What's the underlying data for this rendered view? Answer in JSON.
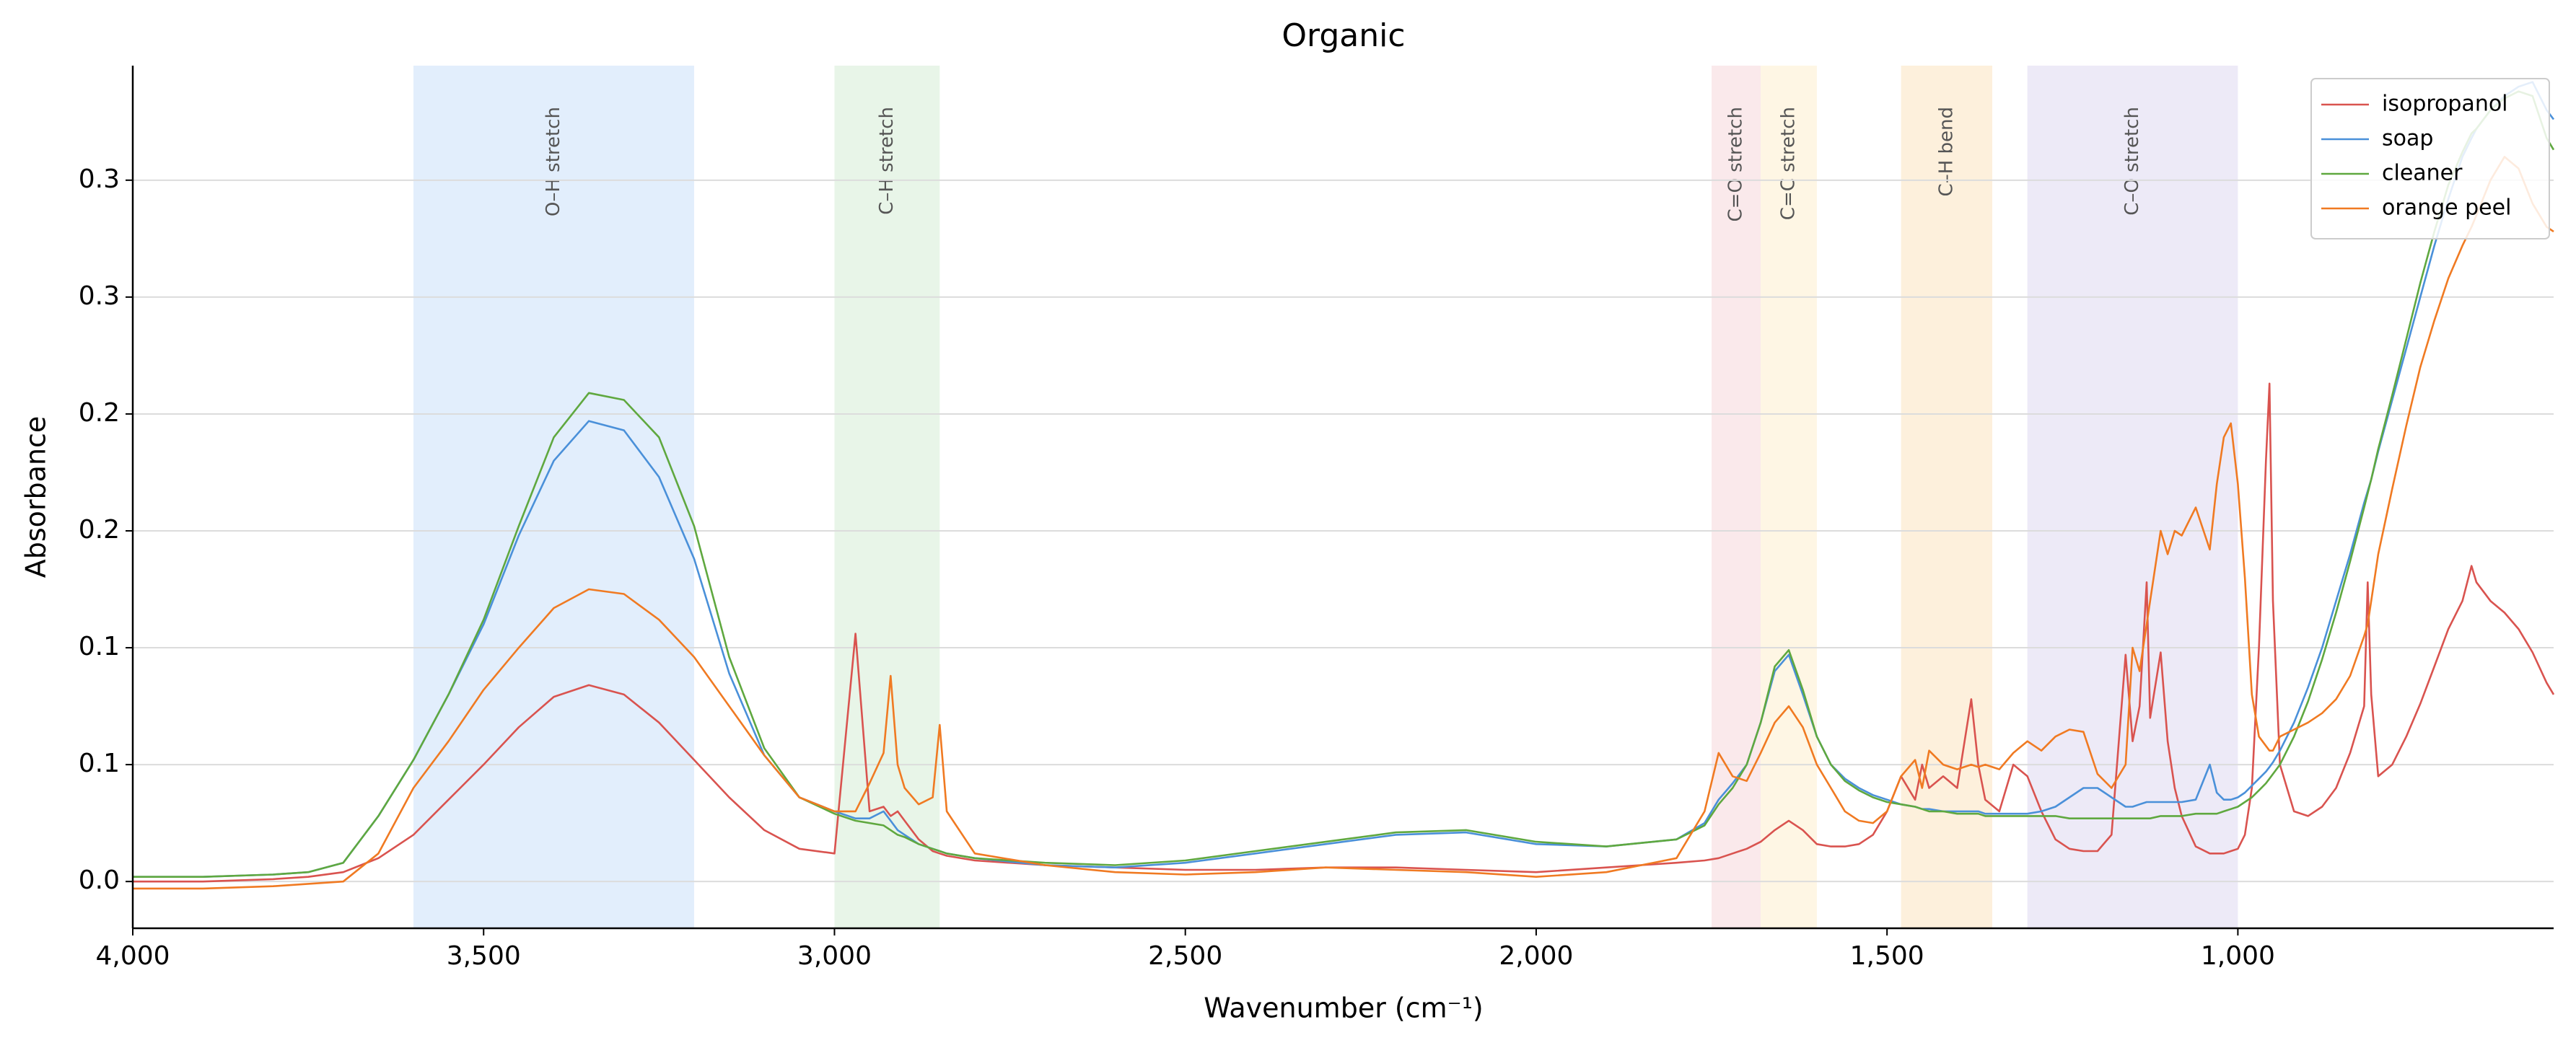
{
  "chart_data": {
    "type": "line",
    "title": "Organic",
    "xlabel": "Wavenumber (cm⁻¹)",
    "ylabel": "Absorbance",
    "xlim": [
      4000,
      550
    ],
    "ylim": [
      -0.02,
      0.349
    ],
    "xticks": [
      {
        "value": 4000,
        "label": "4,000"
      },
      {
        "value": 3500,
        "label": "3,500"
      },
      {
        "value": 3000,
        "label": "3,000"
      },
      {
        "value": 2500,
        "label": "2,500"
      },
      {
        "value": 2000,
        "label": "2,000"
      },
      {
        "value": 1500,
        "label": "1,500"
      },
      {
        "value": 1000,
        "label": "1,000"
      }
    ],
    "yticks": [
      {
        "value": 0,
        "label": "0.0"
      },
      {
        "value": 0.05,
        "label": "0.1"
      },
      {
        "value": 0.1,
        "label": "0.1"
      },
      {
        "value": 0.15,
        "label": "0.2"
      },
      {
        "value": 0.2,
        "label": "0.2"
      },
      {
        "value": 0.25,
        "label": "0.3"
      },
      {
        "value": 0.3,
        "label": "0.3"
      }
    ],
    "grid": true,
    "legend": "upper right",
    "bands": [
      {
        "label": "O–H stretch",
        "from": 3600,
        "to": 3200,
        "color": "#cfe2fa"
      },
      {
        "label": "C–H stretch",
        "from": 3000,
        "to": 2850,
        "color": "#d8eed8"
      },
      {
        "label": "C=O stretch",
        "from": 1750,
        "to": 1680,
        "color": "#f7dadd"
      },
      {
        "label": "C=C stretch",
        "from": 1680,
        "to": 1600,
        "color": "#fdf0d2"
      },
      {
        "label": "C–H bend",
        "from": 1480,
        "to": 1350,
        "color": "#fbe6c4"
      },
      {
        "label": "C–O stretch",
        "from": 1300,
        "to": 1000,
        "color": "#e1dcf2"
      }
    ],
    "x": [
      4000,
      3900,
      3800,
      3750,
      3700,
      3650,
      3600,
      3550,
      3500,
      3450,
      3400,
      3350,
      3300,
      3250,
      3200,
      3150,
      3100,
      3050,
      3000,
      2970,
      2950,
      2930,
      2920,
      2910,
      2900,
      2880,
      2860,
      2850,
      2840,
      2800,
      2700,
      2600,
      2500,
      2400,
      2300,
      2200,
      2100,
      2000,
      1900,
      1800,
      1760,
      1740,
      1720,
      1700,
      1680,
      1660,
      1640,
      1620,
      1600,
      1580,
      1560,
      1540,
      1520,
      1500,
      1480,
      1460,
      1450,
      1440,
      1420,
      1400,
      1380,
      1370,
      1360,
      1340,
      1320,
      1300,
      1280,
      1260,
      1240,
      1220,
      1200,
      1180,
      1160,
      1150,
      1140,
      1130,
      1125,
      1110,
      1100,
      1090,
      1080,
      1060,
      1040,
      1030,
      1020,
      1010,
      1000,
      990,
      980,
      970,
      960,
      955,
      950,
      940,
      920,
      900,
      880,
      860,
      840,
      820,
      815,
      810,
      800,
      780,
      760,
      740,
      720,
      700,
      680,
      667,
      660,
      640,
      620,
      600,
      580,
      560,
      550
    ],
    "series": [
      {
        "name": "isopropanol",
        "color": "#d9534f",
        "values": [
          0.0,
          0.0,
          0.001,
          0.002,
          0.004,
          0.01,
          0.02,
          0.035,
          0.05,
          0.066,
          0.079,
          0.084,
          0.08,
          0.068,
          0.052,
          0.036,
          0.022,
          0.014,
          0.012,
          0.106,
          0.03,
          0.032,
          0.028,
          0.03,
          0.026,
          0.018,
          0.013,
          0.012,
          0.011,
          0.009,
          0.007,
          0.006,
          0.005,
          0.005,
          0.006,
          0.006,
          0.005,
          0.004,
          0.006,
          0.008,
          0.009,
          0.01,
          0.012,
          0.014,
          0.017,
          0.022,
          0.026,
          0.022,
          0.016,
          0.015,
          0.015,
          0.016,
          0.02,
          0.03,
          0.045,
          0.035,
          0.05,
          0.04,
          0.045,
          0.04,
          0.078,
          0.05,
          0.035,
          0.03,
          0.05,
          0.045,
          0.03,
          0.018,
          0.014,
          0.013,
          0.013,
          0.02,
          0.097,
          0.06,
          0.075,
          0.128,
          0.07,
          0.098,
          0.06,
          0.04,
          0.028,
          0.015,
          0.012,
          0.012,
          0.012,
          0.013,
          0.014,
          0.02,
          0.04,
          0.1,
          0.18,
          0.213,
          0.12,
          0.05,
          0.03,
          0.028,
          0.032,
          0.04,
          0.055,
          0.075,
          0.128,
          0.08,
          0.045,
          0.05,
          0.062,
          0.076,
          0.092,
          0.108,
          0.12,
          0.135,
          0.128,
          0.12,
          0.115,
          0.108,
          0.098,
          0.085,
          0.08
        ]
      },
      {
        "name": "soap",
        "color": "#4a90d9",
        "values": [
          0.002,
          0.002,
          0.003,
          0.004,
          0.008,
          0.028,
          0.052,
          0.08,
          0.11,
          0.148,
          0.18,
          0.197,
          0.193,
          0.173,
          0.138,
          0.089,
          0.054,
          0.036,
          0.03,
          0.027,
          0.027,
          0.03,
          0.026,
          0.022,
          0.02,
          0.016,
          0.014,
          0.013,
          0.012,
          0.01,
          0.007,
          0.006,
          0.008,
          0.012,
          0.016,
          0.02,
          0.021,
          0.016,
          0.015,
          0.018,
          0.025,
          0.035,
          0.042,
          0.05,
          0.068,
          0.09,
          0.097,
          0.08,
          0.062,
          0.05,
          0.044,
          0.04,
          0.037,
          0.035,
          0.033,
          0.032,
          0.031,
          0.031,
          0.03,
          0.03,
          0.03,
          0.03,
          0.029,
          0.029,
          0.029,
          0.029,
          0.03,
          0.032,
          0.036,
          0.04,
          0.04,
          0.036,
          0.032,
          0.032,
          0.033,
          0.034,
          0.034,
          0.034,
          0.034,
          0.034,
          0.034,
          0.035,
          0.05,
          0.038,
          0.035,
          0.035,
          0.036,
          0.038,
          0.041,
          0.044,
          0.047,
          0.049,
          0.051,
          0.056,
          0.068,
          0.083,
          0.1,
          0.12,
          0.14,
          0.162,
          0.167,
          0.172,
          0.184,
          0.206,
          0.228,
          0.25,
          0.272,
          0.292,
          0.31,
          0.318,
          0.322,
          0.33,
          0.336,
          0.34,
          0.342,
          0.33,
          0.326
        ]
      },
      {
        "name": "cleaner",
        "color": "#5fa83f",
        "values": [
          0.002,
          0.002,
          0.003,
          0.004,
          0.008,
          0.028,
          0.052,
          0.08,
          0.112,
          0.152,
          0.19,
          0.209,
          0.206,
          0.19,
          0.152,
          0.096,
          0.057,
          0.036,
          0.029,
          0.026,
          0.025,
          0.024,
          0.022,
          0.02,
          0.019,
          0.016,
          0.014,
          0.013,
          0.012,
          0.01,
          0.008,
          0.007,
          0.009,
          0.013,
          0.017,
          0.021,
          0.022,
          0.017,
          0.015,
          0.018,
          0.024,
          0.033,
          0.04,
          0.05,
          0.068,
          0.092,
          0.099,
          0.082,
          0.062,
          0.05,
          0.043,
          0.039,
          0.036,
          0.034,
          0.033,
          0.032,
          0.031,
          0.03,
          0.03,
          0.029,
          0.029,
          0.029,
          0.028,
          0.028,
          0.028,
          0.028,
          0.028,
          0.028,
          0.027,
          0.027,
          0.027,
          0.027,
          0.027,
          0.027,
          0.027,
          0.027,
          0.027,
          0.028,
          0.028,
          0.028,
          0.028,
          0.029,
          0.029,
          0.029,
          0.03,
          0.031,
          0.032,
          0.034,
          0.036,
          0.039,
          0.042,
          0.044,
          0.046,
          0.05,
          0.062,
          0.077,
          0.095,
          0.115,
          0.137,
          0.16,
          0.166,
          0.172,
          0.185,
          0.208,
          0.232,
          0.256,
          0.278,
          0.298,
          0.312,
          0.32,
          0.322,
          0.33,
          0.335,
          0.338,
          0.336,
          0.318,
          0.313
        ]
      },
      {
        "name": "orange peel",
        "color": "#f07a22",
        "values": [
          -0.003,
          -0.003,
          -0.002,
          -0.001,
          0.0,
          0.012,
          0.04,
          0.06,
          0.082,
          0.1,
          0.117,
          0.125,
          0.123,
          0.112,
          0.096,
          0.075,
          0.054,
          0.036,
          0.03,
          0.03,
          0.042,
          0.055,
          0.088,
          0.05,
          0.04,
          0.033,
          0.036,
          0.067,
          0.03,
          0.012,
          0.007,
          0.004,
          0.003,
          0.004,
          0.006,
          0.005,
          0.004,
          0.002,
          0.004,
          0.01,
          0.03,
          0.055,
          0.045,
          0.043,
          0.055,
          0.068,
          0.075,
          0.066,
          0.05,
          0.04,
          0.03,
          0.026,
          0.025,
          0.03,
          0.045,
          0.052,
          0.04,
          0.056,
          0.05,
          0.048,
          0.05,
          0.049,
          0.05,
          0.048,
          0.055,
          0.06,
          0.056,
          0.062,
          0.065,
          0.064,
          0.046,
          0.04,
          0.05,
          0.1,
          0.09,
          0.11,
          0.12,
          0.15,
          0.14,
          0.15,
          0.148,
          0.16,
          0.142,
          0.17,
          0.19,
          0.196,
          0.17,
          0.13,
          0.08,
          0.062,
          0.058,
          0.056,
          0.056,
          0.062,
          0.065,
          0.068,
          0.072,
          0.078,
          0.088,
          0.105,
          0.11,
          0.12,
          0.14,
          0.168,
          0.195,
          0.22,
          0.24,
          0.258,
          0.272,
          0.28,
          0.285,
          0.3,
          0.31,
          0.305,
          0.29,
          0.28,
          0.278
        ]
      }
    ]
  }
}
